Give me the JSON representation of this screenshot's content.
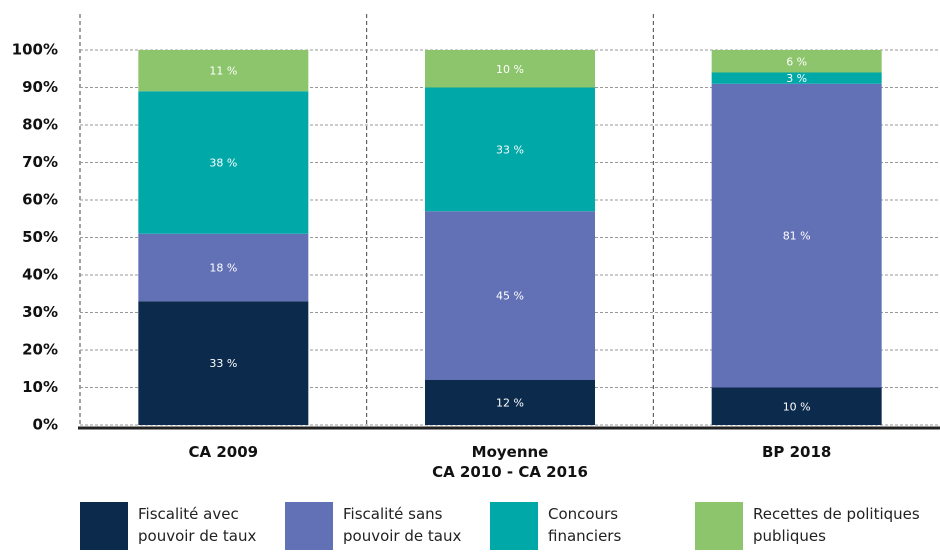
{
  "chart_data": {
    "type": "stacked_bar",
    "categories": [
      "CA 2009",
      "Moyenne\nCA 2010 - CA 2016",
      "BP 2018"
    ],
    "ylim": [
      0,
      100
    ],
    "yticks": [
      {
        "value": 0,
        "label": "0%"
      },
      {
        "value": 10,
        "label": "10%"
      },
      {
        "value": 20,
        "label": "20%"
      },
      {
        "value": 30,
        "label": "30%"
      },
      {
        "value": 40,
        "label": "40%"
      },
      {
        "value": 50,
        "label": "50%"
      },
      {
        "value": 60,
        "label": "60%"
      },
      {
        "value": 70,
        "label": "70%"
      },
      {
        "value": 80,
        "label": "80%"
      },
      {
        "value": 90,
        "label": "90%"
      },
      {
        "value": 100,
        "label": "100%"
      }
    ],
    "grid": true,
    "legend": "bottom",
    "series": [
      {
        "name": "Fiscalité avec pouvoir de taux",
        "color": "#0b2a4c",
        "values": [
          33,
          12,
          10
        ],
        "value_labels": [
          "33 %",
          "12 %",
          "10 %"
        ]
      },
      {
        "name": "Fiscalité sans pouvoir de taux",
        "color": "#6270b6",
        "values": [
          18,
          45,
          81
        ],
        "value_labels": [
          "18 %",
          "45 %",
          "81 %"
        ]
      },
      {
        "name": "Concours financiers",
        "color": "#00a8a8",
        "values": [
          38,
          33,
          3
        ],
        "value_labels": [
          "38 %",
          "33 %",
          "3 %"
        ]
      },
      {
        "name": "Recettes de politiques publiques",
        "color": "#8cc56c",
        "values": [
          11,
          10,
          6
        ],
        "value_labels": [
          "11 %",
          "10 %",
          "6 %"
        ]
      }
    ]
  }
}
